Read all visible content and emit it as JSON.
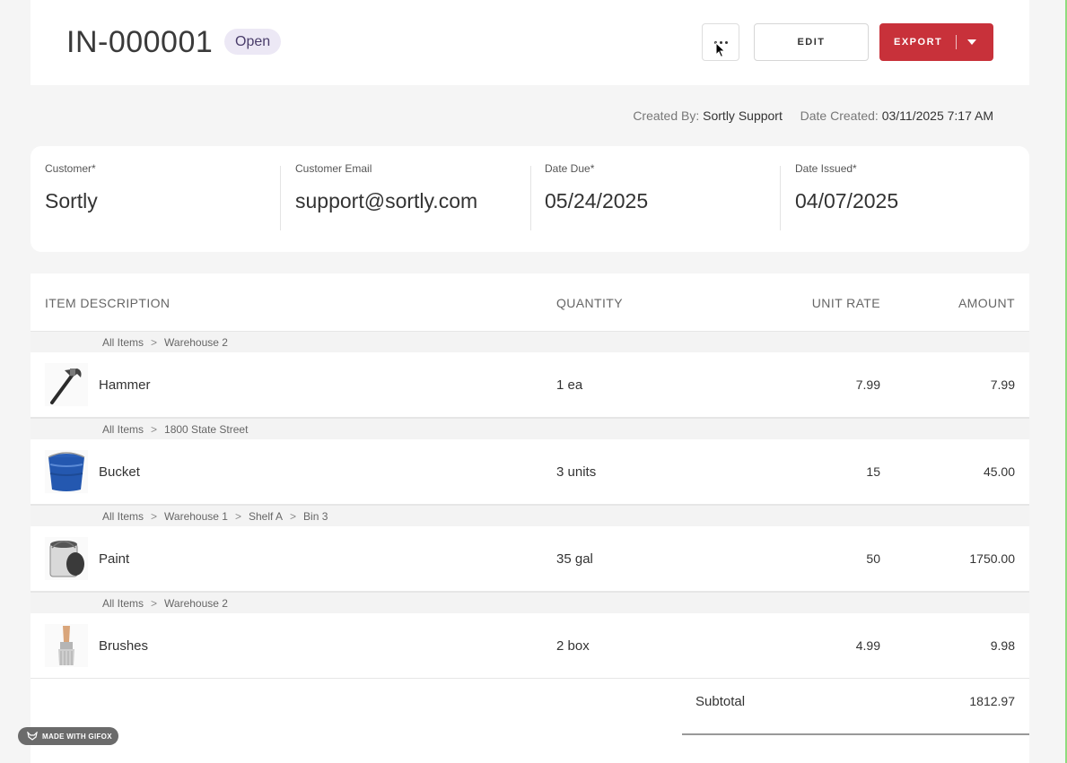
{
  "header": {
    "invoice_number": "IN-000001",
    "status": "Open",
    "edit_label": "EDIT",
    "export_label": "EXPORT"
  },
  "meta": {
    "created_by_label": "Created By:",
    "created_by": "Sortly Support",
    "date_created_label": "Date Created:",
    "date_created": "03/11/2025 7:17 AM"
  },
  "info": {
    "customer_label": "Customer*",
    "customer": "Sortly",
    "email_label": "Customer Email",
    "email": "support@sortly.com",
    "date_due_label": "Date Due*",
    "date_due": "05/24/2025",
    "date_issued_label": "Date Issued*",
    "date_issued": "04/07/2025"
  },
  "table": {
    "columns": [
      "ITEM DESCRIPTION",
      "QUANTITY",
      "UNIT RATE",
      "AMOUNT"
    ],
    "items": [
      {
        "path": [
          "All Items",
          "Warehouse 2"
        ],
        "name": "Hammer",
        "quantity": "1 ea",
        "unit_rate": "7.99",
        "amount": "7.99",
        "icon": "hammer-icon"
      },
      {
        "path": [
          "All Items",
          "1800 State Street"
        ],
        "name": "Bucket",
        "quantity": "3 units",
        "unit_rate": "15",
        "amount": "45.00",
        "icon": "bucket-icon"
      },
      {
        "path": [
          "All Items",
          "Warehouse 1",
          "Shelf A",
          "Bin 3"
        ],
        "name": "Paint",
        "quantity": "35 gal",
        "unit_rate": "50",
        "amount": "1750.00",
        "icon": "paint-can-icon"
      },
      {
        "path": [
          "All Items",
          "Warehouse 2"
        ],
        "name": "Brushes",
        "quantity": "2 box",
        "unit_rate": "4.99",
        "amount": "9.98",
        "icon": "brush-icon"
      }
    ],
    "path_separator": ">",
    "subtotal_label": "Subtotal",
    "subtotal": "1812.97"
  },
  "badge": {
    "text": "MADE WITH GIFOX"
  },
  "colors": {
    "accent": "#c8313a",
    "status_bg": "#ece8f5",
    "page_bg": "#f5f5f5"
  }
}
